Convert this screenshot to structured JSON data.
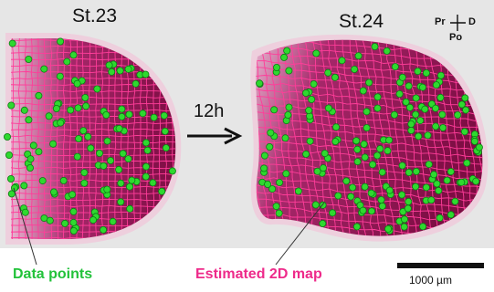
{
  "panels": {
    "left_stage": "St.23",
    "right_stage": "St.24",
    "time_label": "12h"
  },
  "orientation": {
    "left": "Pr",
    "right": "D",
    "bottom": "Po"
  },
  "legend": {
    "data_points": "Data points",
    "estimated_map": "Estimated 2D map"
  },
  "scale_bar": {
    "label": "1000 µm"
  },
  "colors": {
    "background": "#e6e6e6",
    "grid_line": "#ff3d9a",
    "tissue_dark": "#8a1049",
    "tissue_light": "#e7b3cf",
    "dot_fill": "#2fd92f",
    "dot_stroke": "#0a7d14",
    "legend_green": "#22c23a",
    "legend_pink": "#ee2a8a"
  }
}
